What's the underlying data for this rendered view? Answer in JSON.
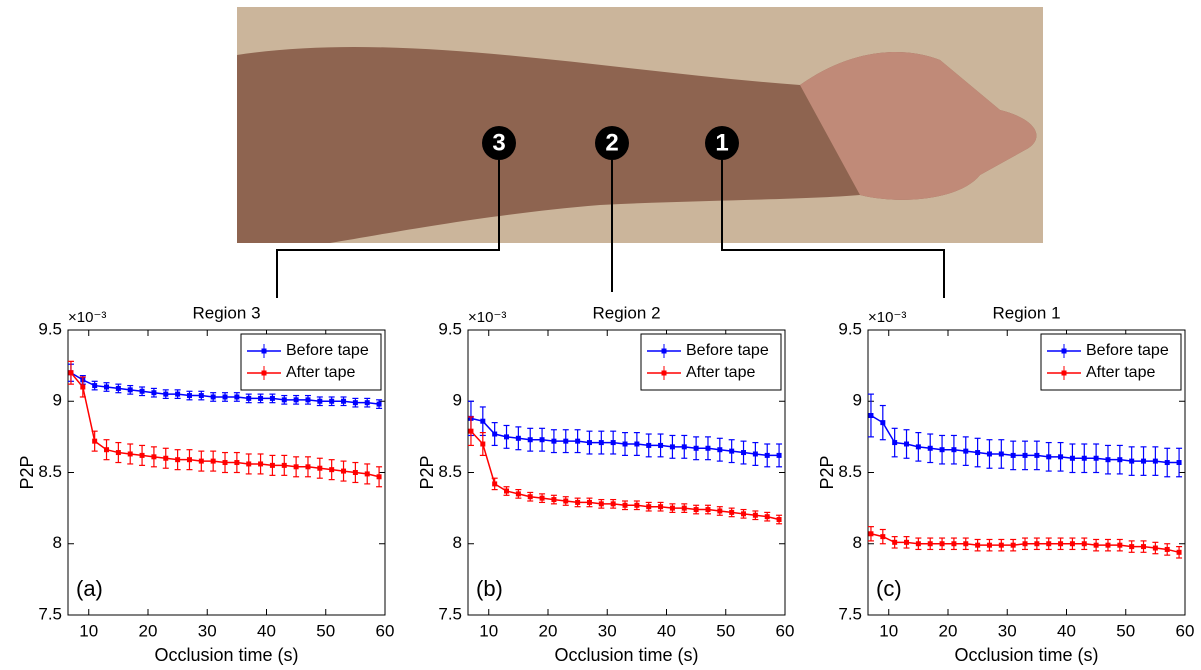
{
  "photo": {
    "markers": [
      "3",
      "2",
      "1"
    ]
  },
  "chart_data": [
    {
      "type": "line",
      "title": "Region 3",
      "annotation": "(a)",
      "xlabel": "Occlusion time (s)",
      "ylabel": "P2P",
      "y_multiplier": "×10⁻³",
      "x": [
        7,
        9,
        11,
        13,
        15,
        17,
        19,
        21,
        23,
        25,
        27,
        29,
        31,
        33,
        35,
        37,
        39,
        41,
        43,
        45,
        47,
        49,
        51,
        53,
        55,
        57,
        59
      ],
      "xlim": [
        6.5,
        60
      ],
      "xticks": [
        10,
        20,
        30,
        40,
        50,
        60
      ],
      "ylim": [
        7.5,
        9.5
      ],
      "yticks": [
        7.5,
        8,
        8.5,
        9,
        9.5
      ],
      "grid": false,
      "legend": "upper right",
      "series": [
        {
          "name": "Before tape",
          "color": "#0000ff",
          "values": [
            9.2,
            9.15,
            9.11,
            9.1,
            9.09,
            9.08,
            9.07,
            9.06,
            9.05,
            9.05,
            9.04,
            9.04,
            9.03,
            9.03,
            9.03,
            9.02,
            9.02,
            9.02,
            9.01,
            9.01,
            9.01,
            9.0,
            9.0,
            9.0,
            8.99,
            8.99,
            8.98
          ],
          "errors": [
            0.06,
            0.03,
            0.03,
            0.03,
            0.03,
            0.03,
            0.03,
            0.03,
            0.03,
            0.03,
            0.03,
            0.03,
            0.03,
            0.03,
            0.03,
            0.03,
            0.03,
            0.03,
            0.03,
            0.03,
            0.03,
            0.03,
            0.03,
            0.03,
            0.03,
            0.03,
            0.03
          ]
        },
        {
          "name": "After tape",
          "color": "#ff0000",
          "values": [
            9.2,
            9.1,
            8.72,
            8.66,
            8.64,
            8.63,
            8.62,
            8.61,
            8.6,
            8.59,
            8.59,
            8.58,
            8.58,
            8.57,
            8.57,
            8.56,
            8.56,
            8.55,
            8.55,
            8.54,
            8.54,
            8.53,
            8.52,
            8.51,
            8.5,
            8.49,
            8.47
          ],
          "errors": [
            0.08,
            0.07,
            0.07,
            0.07,
            0.07,
            0.07,
            0.07,
            0.07,
            0.07,
            0.07,
            0.07,
            0.07,
            0.07,
            0.07,
            0.07,
            0.07,
            0.07,
            0.07,
            0.07,
            0.07,
            0.07,
            0.07,
            0.07,
            0.07,
            0.07,
            0.07,
            0.07
          ]
        }
      ]
    },
    {
      "type": "line",
      "title": "Region 2",
      "annotation": "(b)",
      "xlabel": "Occlusion time (s)",
      "ylabel": "P2P",
      "y_multiplier": "×10⁻³",
      "x": [
        7,
        9,
        11,
        13,
        15,
        17,
        19,
        21,
        23,
        25,
        27,
        29,
        31,
        33,
        35,
        37,
        39,
        41,
        43,
        45,
        47,
        49,
        51,
        53,
        55,
        57,
        59
      ],
      "xlim": [
        6.5,
        60
      ],
      "xticks": [
        10,
        20,
        30,
        40,
        50,
        60
      ],
      "ylim": [
        7.5,
        9.5
      ],
      "yticks": [
        7.5,
        8,
        8.5,
        9,
        9.5
      ],
      "grid": false,
      "legend": "upper right",
      "series": [
        {
          "name": "Before tape",
          "color": "#0000ff",
          "values": [
            8.88,
            8.86,
            8.77,
            8.75,
            8.74,
            8.73,
            8.73,
            8.72,
            8.72,
            8.72,
            8.71,
            8.71,
            8.71,
            8.7,
            8.7,
            8.69,
            8.69,
            8.68,
            8.68,
            8.67,
            8.67,
            8.66,
            8.65,
            8.64,
            8.63,
            8.62,
            8.62
          ],
          "errors": [
            0.12,
            0.1,
            0.08,
            0.08,
            0.08,
            0.08,
            0.08,
            0.08,
            0.08,
            0.08,
            0.08,
            0.08,
            0.08,
            0.08,
            0.08,
            0.08,
            0.08,
            0.08,
            0.08,
            0.08,
            0.08,
            0.08,
            0.08,
            0.08,
            0.08,
            0.08,
            0.08
          ]
        },
        {
          "name": "After tape",
          "color": "#ff0000",
          "values": [
            8.79,
            8.7,
            8.42,
            8.37,
            8.35,
            8.33,
            8.32,
            8.31,
            8.3,
            8.29,
            8.29,
            8.28,
            8.28,
            8.27,
            8.27,
            8.26,
            8.26,
            8.25,
            8.25,
            8.24,
            8.24,
            8.23,
            8.22,
            8.21,
            8.2,
            8.19,
            8.17
          ],
          "errors": [
            0.1,
            0.08,
            0.04,
            0.03,
            0.03,
            0.03,
            0.03,
            0.03,
            0.03,
            0.03,
            0.03,
            0.03,
            0.03,
            0.03,
            0.03,
            0.03,
            0.03,
            0.03,
            0.03,
            0.03,
            0.03,
            0.03,
            0.03,
            0.03,
            0.03,
            0.03,
            0.03
          ]
        }
      ]
    },
    {
      "type": "line",
      "title": "Region 1",
      "annotation": "(c)",
      "xlabel": "Occlusion time (s)",
      "ylabel": "P2P",
      "y_multiplier": "×10⁻³",
      "x": [
        7,
        9,
        11,
        13,
        15,
        17,
        19,
        21,
        23,
        25,
        27,
        29,
        31,
        33,
        35,
        37,
        39,
        41,
        43,
        45,
        47,
        49,
        51,
        53,
        55,
        57,
        59
      ],
      "xlim": [
        6.5,
        60
      ],
      "xticks": [
        10,
        20,
        30,
        40,
        50,
        60
      ],
      "ylim": [
        7.5,
        9.5
      ],
      "yticks": [
        7.5,
        8,
        8.5,
        9,
        9.5
      ],
      "grid": false,
      "legend": "upper right",
      "series": [
        {
          "name": "Before tape",
          "color": "#0000ff",
          "values": [
            8.9,
            8.85,
            8.71,
            8.7,
            8.68,
            8.67,
            8.66,
            8.66,
            8.65,
            8.64,
            8.63,
            8.63,
            8.62,
            8.62,
            8.62,
            8.61,
            8.61,
            8.6,
            8.6,
            8.6,
            8.59,
            8.59,
            8.58,
            8.58,
            8.58,
            8.57,
            8.57
          ],
          "errors": [
            0.15,
            0.12,
            0.1,
            0.1,
            0.1,
            0.1,
            0.1,
            0.1,
            0.1,
            0.1,
            0.1,
            0.1,
            0.1,
            0.1,
            0.1,
            0.1,
            0.1,
            0.1,
            0.1,
            0.1,
            0.1,
            0.1,
            0.1,
            0.1,
            0.1,
            0.1,
            0.1
          ]
        },
        {
          "name": "After tape",
          "color": "#ff0000",
          "values": [
            8.07,
            8.05,
            8.01,
            8.01,
            8.0,
            8.0,
            8.0,
            8.0,
            8.0,
            7.99,
            7.99,
            7.99,
            7.99,
            8.0,
            8.0,
            8.0,
            8.0,
            8.0,
            8.0,
            7.99,
            7.99,
            7.99,
            7.98,
            7.98,
            7.97,
            7.96,
            7.94
          ],
          "errors": [
            0.05,
            0.05,
            0.04,
            0.04,
            0.04,
            0.04,
            0.04,
            0.04,
            0.04,
            0.04,
            0.04,
            0.04,
            0.04,
            0.04,
            0.04,
            0.04,
            0.04,
            0.04,
            0.04,
            0.04,
            0.04,
            0.04,
            0.04,
            0.04,
            0.04,
            0.04,
            0.04
          ]
        }
      ]
    }
  ]
}
